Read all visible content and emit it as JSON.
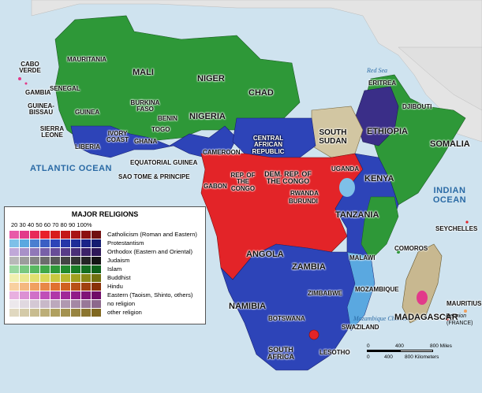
{
  "map": {
    "oceans": [
      "ATLANTIC OCEAN",
      "INDIAN OCEAN"
    ],
    "waters": [
      "Red Sea",
      "Mozambique Channel"
    ],
    "countries": {
      "cabo_verde": "CABO VERDE",
      "mauritania": "MAURITANIA",
      "mali": "MALI",
      "niger": "NIGER",
      "chad": "CHAD",
      "senegal": "SENEGAL",
      "gambia": "GAMBIA",
      "guinea_bissau": "GUINEA-BISSAU",
      "guinea": "GUINEA",
      "sierra_leone": "SIERRA LEONE",
      "liberia": "LIBERIA",
      "ivory_coast": "IVORY COAST",
      "burkina_faso": "BURKINA FASO",
      "ghana": "GHANA",
      "togo": "TOGO",
      "benin": "BENIN",
      "nigeria": "NIGERIA",
      "cameroon": "CAMEROON",
      "central_african_republic": "CENTRAL AFRICAN REPUBLIC",
      "south_sudan": "SOUTH SUDAN",
      "eritrea": "ERITREA",
      "djibouti": "DJIBOUTI",
      "ethiopia": "ETHIOPIA",
      "somalia": "SOMALIA",
      "equatorial_guinea": "EQUATORIAL GUINEA",
      "sao_tome": "SAO TOME & PRINCIPE",
      "gabon": "GABON",
      "rep_congo": "REP. OF THE CONGO",
      "dem_rep_congo": "DEM. REP. OF THE CONGO",
      "uganda": "UGANDA",
      "kenya": "KENYA",
      "rwanda": "RWANDA",
      "burundi": "BURUNDI",
      "tanzania": "TANZANIA",
      "seychelles": "SEYCHELLES",
      "angola": "ANGOLA",
      "zambia": "ZAMBIA",
      "malawi": "MALAWI",
      "comoros": "COMOROS",
      "mozambique": "MOZAMBIQUE",
      "zimbabwe": "ZIMBABWE",
      "namibia": "NAMIBIA",
      "botswana": "BOTSWANA",
      "madagascar": "MADAGASCAR",
      "mauritius": "MAURITIUS",
      "reunion": "Reunion",
      "reunion_note": "(FRANCE)",
      "swaziland": "SWAZILAND",
      "south_africa": "SOUTH AFRICA",
      "lesotho": "LESOTHO"
    }
  },
  "legend": {
    "title": "MAJOR RELIGIONS",
    "scale": "20 30 40 50 60 70 80 90 100%",
    "items": [
      {
        "name": "Catholicism (Roman and Eastern)",
        "colors": [
          "#e85aa8",
          "#e23a8a",
          "#e82a5a",
          "#e8202a",
          "#d81c1c",
          "#c41818",
          "#a81414",
          "#8c1010",
          "#701010"
        ]
      },
      {
        "name": "Protestantism",
        "colors": [
          "#7ec0e8",
          "#5aa8e0",
          "#4a7fd0",
          "#3a5fc4",
          "#2d44b8",
          "#2536a8",
          "#1f2c98",
          "#1a2488",
          "#141c70"
        ]
      },
      {
        "name": "Orthodox (Eastern and Oriental)",
        "colors": [
          "#c0a8d8",
          "#a890c8",
          "#9078b8",
          "#7860a8",
          "#684c98",
          "#583c88",
          "#4a2e78",
          "#3c2268",
          "#2e1858"
        ]
      },
      {
        "name": "Judaism",
        "colors": [
          "#b8b8b8",
          "#9c9c9c",
          "#848484",
          "#6c6c6c",
          "#585858",
          "#444444",
          "#343434",
          "#242424",
          "#141414"
        ]
      },
      {
        "name": "Islam",
        "colors": [
          "#9ad8a0",
          "#78c880",
          "#58b860",
          "#40a848",
          "#2e9838",
          "#228a2e",
          "#1a7c26",
          "#146e20",
          "#0e601a"
        ]
      },
      {
        "name": "Buddhist",
        "colors": [
          "#f0f0b0",
          "#e8e890",
          "#e0e070",
          "#d8d858",
          "#c8c840",
          "#b8b830",
          "#a0a020",
          "#888818",
          "#707010"
        ]
      },
      {
        "name": "Hindu",
        "colors": [
          "#f8d0a0",
          "#f4b880",
          "#f0a060",
          "#e88848",
          "#e07030",
          "#d06020",
          "#b85018",
          "#a04010",
          "#883008"
        ]
      },
      {
        "name": "Eastern (Taoism, Shinto, others)",
        "colors": [
          "#e8b0e0",
          "#dc90d4",
          "#d070c8",
          "#c050b8",
          "#b038a8",
          "#a02898",
          "#901c88",
          "#801478",
          "#700c68"
        ]
      },
      {
        "name": "no religion",
        "colors": [
          "#ece8ec",
          "#e0d8e0",
          "#d4c8d4",
          "#c8b8c8",
          "#bca8bc",
          "#b098b0",
          "#a488a4",
          "#987898",
          "#8c688c"
        ]
      },
      {
        "name": "other religion",
        "colors": [
          "#e0d8c0",
          "#d4caa8",
          "#c8bc90",
          "#bcae78",
          "#b0a060",
          "#a49250",
          "#988440",
          "#8c7630",
          "#806820"
        ]
      }
    ]
  },
  "scale_bar": {
    "miles": [
      "0",
      "400",
      "800 Miles"
    ],
    "km": [
      "0",
      "400",
      "800 Kilometers"
    ]
  },
  "colors": {
    "ocean": "#cfe3ef",
    "land_outside": "#e4e4e4",
    "islam": "#2e9838",
    "catholic": "#e32428",
    "protestant": "#2d44b8",
    "orthodox": "#5a3c90",
    "other": "#d2c6a2"
  }
}
